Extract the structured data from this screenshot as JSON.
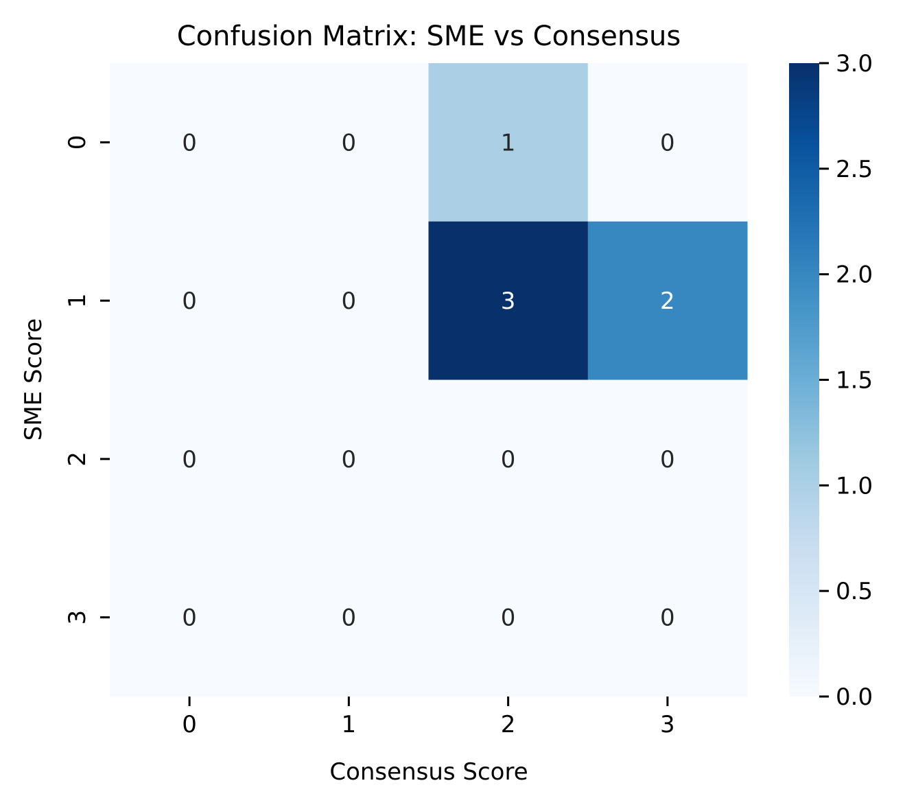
{
  "chart_data": {
    "type": "heatmap",
    "title": "Confusion Matrix: SME vs Consensus",
    "xlabel": "Consensus Score",
    "ylabel": "SME Score",
    "x_categories": [
      "0",
      "1",
      "2",
      "3"
    ],
    "y_categories": [
      "0",
      "1",
      "2",
      "3"
    ],
    "values": [
      [
        0,
        0,
        1,
        0
      ],
      [
        0,
        0,
        3,
        2
      ],
      [
        0,
        0,
        0,
        0
      ],
      [
        0,
        0,
        0,
        0
      ]
    ],
    "colormap": "Blues",
    "colorbar": {
      "range": [
        0.0,
        3.0
      ],
      "ticks": [
        "0.0",
        "0.5",
        "1.0",
        "1.5",
        "2.0",
        "2.5",
        "3.0"
      ],
      "placement": "right"
    },
    "colors": {
      "min": "#f7fbff",
      "max": "#08306b",
      "text_dark": "#262626",
      "text_light": "#ffffff"
    },
    "grid": false
  }
}
